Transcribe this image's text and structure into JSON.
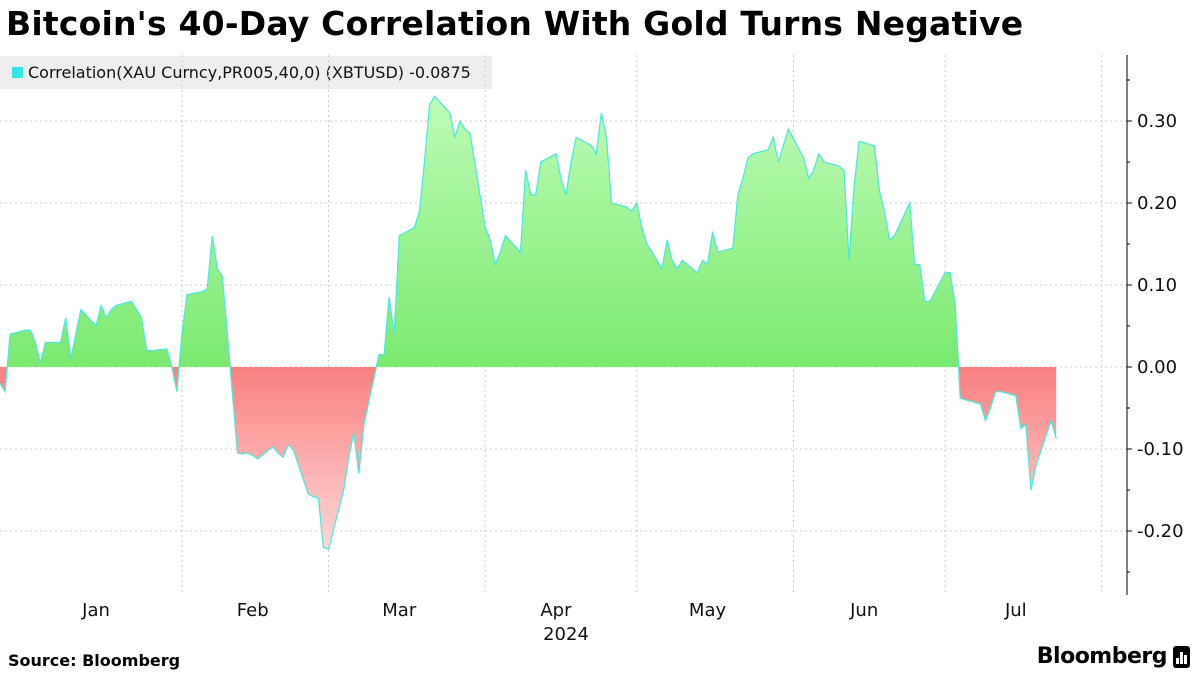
{
  "title": "Bitcoin's 40-Day Correlation With Gold Turns Negative",
  "legend": {
    "label": "Correlation(XAU Curncy,PR005,40,0) (XBTUSD) -0.0875",
    "color": "#33e6e6"
  },
  "footer": {
    "source": "Source: Bloomberg",
    "brand": "Bloomberg"
  },
  "colors": {
    "line": "#4ee8dc",
    "positive_fill_top": "#c8ffc0",
    "positive_fill_bottom": "#7ae96e",
    "negative_fill_top": "#fa8080",
    "negative_fill_bottom": "#ffd6d6",
    "grid": "#cccccc"
  },
  "chart_data": {
    "type": "area",
    "x_axis_type": "date",
    "series": [
      {
        "name": "Correlation(XAU Curncy,PR005,40,0) (XBTUSD)",
        "last_value": -0.0875,
        "points": [
          [
            "2023-12-27",
            -0.02
          ],
          [
            "2023-12-28",
            -0.03
          ],
          [
            "2023-12-29",
            0.04
          ],
          [
            "2024-01-01",
            0.045
          ],
          [
            "2024-01-02",
            0.045
          ],
          [
            "2024-01-03",
            0.03
          ],
          [
            "2024-01-04",
            0.005
          ],
          [
            "2024-01-05",
            0.03
          ],
          [
            "2024-01-08",
            0.03
          ],
          [
            "2024-01-09",
            0.06
          ],
          [
            "2024-01-10",
            0.01
          ],
          [
            "2024-01-11",
            0.04
          ],
          [
            "2024-01-12",
            0.07
          ],
          [
            "2024-01-15",
            0.05
          ],
          [
            "2024-01-16",
            0.075
          ],
          [
            "2024-01-17",
            0.06
          ],
          [
            "2024-01-18",
            0.07
          ],
          [
            "2024-01-19",
            0.075
          ],
          [
            "2024-01-22",
            0.08
          ],
          [
            "2024-01-23",
            0.07
          ],
          [
            "2024-01-24",
            0.06
          ],
          [
            "2024-01-25",
            0.02
          ],
          [
            "2024-01-26",
            0.02
          ],
          [
            "2024-01-29",
            0.022
          ],
          [
            "2024-01-30",
            0.0
          ],
          [
            "2024-01-31",
            -0.03
          ],
          [
            "2024-02-01",
            0.04
          ],
          [
            "2024-02-02",
            0.088
          ],
          [
            "2024-02-05",
            0.092
          ],
          [
            "2024-02-06",
            0.095
          ],
          [
            "2024-02-07",
            0.16
          ],
          [
            "2024-02-08",
            0.12
          ],
          [
            "2024-02-09",
            0.11
          ],
          [
            "2024-02-12",
            -0.105
          ],
          [
            "2024-02-13",
            -0.106
          ],
          [
            "2024-02-14",
            -0.105
          ],
          [
            "2024-02-15",
            -0.108
          ],
          [
            "2024-02-16",
            -0.112
          ],
          [
            "2024-02-19",
            -0.097
          ],
          [
            "2024-02-20",
            -0.105
          ],
          [
            "2024-02-21",
            -0.11
          ],
          [
            "2024-02-22",
            -0.095
          ],
          [
            "2024-02-23",
            -0.1
          ],
          [
            "2024-02-26",
            -0.155
          ],
          [
            "2024-02-27",
            -0.158
          ],
          [
            "2024-02-28",
            -0.16
          ],
          [
            "2024-02-29",
            -0.22
          ],
          [
            "2024-03-01",
            -0.222
          ],
          [
            "2024-03-04",
            -0.15
          ],
          [
            "2024-03-05",
            -0.11
          ],
          [
            "2024-03-06",
            -0.08
          ],
          [
            "2024-03-07",
            -0.13
          ],
          [
            "2024-03-08",
            -0.07
          ],
          [
            "2024-03-11",
            0.015
          ],
          [
            "2024-03-12",
            0.015
          ],
          [
            "2024-03-13",
            0.085
          ],
          [
            "2024-03-14",
            0.04
          ],
          [
            "2024-03-15",
            0.16
          ],
          [
            "2024-03-18",
            0.17
          ],
          [
            "2024-03-19",
            0.19
          ],
          [
            "2024-03-20",
            0.25
          ],
          [
            "2024-03-21",
            0.32
          ],
          [
            "2024-03-22",
            0.33
          ],
          [
            "2024-03-25",
            0.31
          ],
          [
            "2024-03-26",
            0.28
          ],
          [
            "2024-03-27",
            0.3
          ],
          [
            "2024-03-28",
            0.29
          ],
          [
            "2024-03-29",
            0.285
          ],
          [
            "2024-04-01",
            0.17
          ],
          [
            "2024-04-02",
            0.155
          ],
          [
            "2024-04-03",
            0.125
          ],
          [
            "2024-04-04",
            0.14
          ],
          [
            "2024-04-05",
            0.16
          ],
          [
            "2024-04-08",
            0.14
          ],
          [
            "2024-04-09",
            0.24
          ],
          [
            "2024-04-10",
            0.21
          ],
          [
            "2024-04-11",
            0.21
          ],
          [
            "2024-04-12",
            0.25
          ],
          [
            "2024-04-15",
            0.26
          ],
          [
            "2024-04-16",
            0.23
          ],
          [
            "2024-04-17",
            0.21
          ],
          [
            "2024-04-18",
            0.25
          ],
          [
            "2024-04-19",
            0.28
          ],
          [
            "2024-04-22",
            0.27
          ],
          [
            "2024-04-23",
            0.26
          ],
          [
            "2024-04-24",
            0.31
          ],
          [
            "2024-04-25",
            0.28
          ],
          [
            "2024-04-26",
            0.2
          ],
          [
            "2024-04-29",
            0.195
          ],
          [
            "2024-04-30",
            0.19
          ],
          [
            "2024-05-01",
            0.2
          ],
          [
            "2024-05-02",
            0.17
          ],
          [
            "2024-05-03",
            0.15
          ],
          [
            "2024-05-06",
            0.12
          ],
          [
            "2024-05-07",
            0.155
          ],
          [
            "2024-05-08",
            0.13
          ],
          [
            "2024-05-09",
            0.12
          ],
          [
            "2024-05-10",
            0.13
          ],
          [
            "2024-05-13",
            0.115
          ],
          [
            "2024-05-14",
            0.13
          ],
          [
            "2024-05-15",
            0.125
          ],
          [
            "2024-05-16",
            0.165
          ],
          [
            "2024-05-17",
            0.14
          ],
          [
            "2024-05-20",
            0.145
          ],
          [
            "2024-05-21",
            0.21
          ],
          [
            "2024-05-22",
            0.23
          ],
          [
            "2024-05-23",
            0.255
          ],
          [
            "2024-05-24",
            0.26
          ],
          [
            "2024-05-27",
            0.265
          ],
          [
            "2024-05-28",
            0.28
          ],
          [
            "2024-05-29",
            0.25
          ],
          [
            "2024-05-30",
            0.27
          ],
          [
            "2024-05-31",
            0.29
          ],
          [
            "2024-06-03",
            0.255
          ],
          [
            "2024-06-04",
            0.23
          ],
          [
            "2024-06-05",
            0.24
          ],
          [
            "2024-06-06",
            0.26
          ],
          [
            "2024-06-07",
            0.25
          ],
          [
            "2024-06-10",
            0.245
          ],
          [
            "2024-06-11",
            0.24
          ],
          [
            "2024-06-12",
            0.13
          ],
          [
            "2024-06-13",
            0.22
          ],
          [
            "2024-06-14",
            0.275
          ],
          [
            "2024-06-17",
            0.27
          ],
          [
            "2024-06-18",
            0.215
          ],
          [
            "2024-06-19",
            0.19
          ],
          [
            "2024-06-20",
            0.155
          ],
          [
            "2024-06-21",
            0.16
          ],
          [
            "2024-06-24",
            0.2
          ],
          [
            "2024-06-25",
            0.125
          ],
          [
            "2024-06-26",
            0.125
          ],
          [
            "2024-06-27",
            0.08
          ],
          [
            "2024-06-28",
            0.08
          ],
          [
            "2024-07-01",
            0.115
          ],
          [
            "2024-07-02",
            0.115
          ],
          [
            "2024-07-03",
            0.075
          ],
          [
            "2024-07-04",
            -0.038
          ],
          [
            "2024-07-05",
            -0.04
          ],
          [
            "2024-07-08",
            -0.045
          ],
          [
            "2024-07-09",
            -0.065
          ],
          [
            "2024-07-10",
            -0.05
          ],
          [
            "2024-07-11",
            -0.03
          ],
          [
            "2024-07-12",
            -0.03
          ],
          [
            "2024-07-15",
            -0.035
          ],
          [
            "2024-07-16",
            -0.075
          ],
          [
            "2024-07-17",
            -0.07
          ],
          [
            "2024-07-18",
            -0.15
          ],
          [
            "2024-07-19",
            -0.12
          ],
          [
            "2024-07-22",
            -0.065
          ],
          [
            "2024-07-23",
            -0.0875
          ]
        ]
      }
    ],
    "xlabel": "2024",
    "x_ticks": [
      {
        "label": "Jan",
        "date": "2024-01-15"
      },
      {
        "label": "Feb",
        "date": "2024-02-15"
      },
      {
        "label": "Mar",
        "date": "2024-03-15"
      },
      {
        "label": "Apr",
        "date": "2024-04-15"
      },
      {
        "label": "May",
        "date": "2024-05-15"
      },
      {
        "label": "Jun",
        "date": "2024-06-15"
      },
      {
        "label": "Jul",
        "date": "2024-07-15"
      }
    ],
    "x_gridlines": [
      "2024-02-01",
      "2024-03-01",
      "2024-04-01",
      "2024-05-01",
      "2024-06-01",
      "2024-07-01",
      "2024-08-01"
    ],
    "xlim": [
      "2023-12-27",
      "2024-08-06"
    ],
    "y_ticks": [
      0.3,
      0.2,
      0.1,
      0.0,
      -0.1,
      -0.2
    ],
    "y_tick_labels": [
      "0.30",
      "0.20",
      "0.10",
      "0.00",
      "-0.10",
      "-0.20"
    ],
    "ylim": [
      -0.28,
      0.38
    ],
    "y_axis_position": "right",
    "grid": true,
    "legend_position": "top-left"
  }
}
